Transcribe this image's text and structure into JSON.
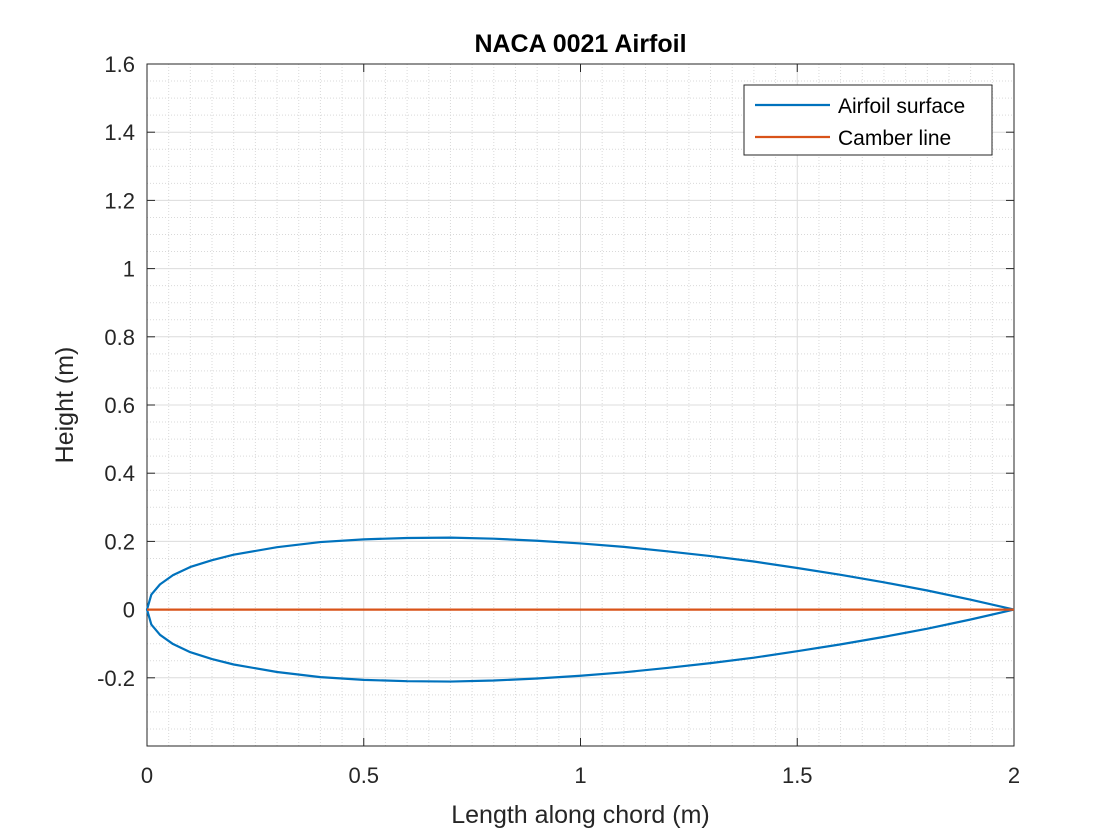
{
  "chart_data": {
    "type": "line",
    "title": "NACA 0021 Airfoil",
    "xlabel": "Length along chord (m)",
    "ylabel": "Height (m)",
    "xlim": [
      0,
      2
    ],
    "ylim": [
      -0.4,
      1.6
    ],
    "xticks": [
      0,
      0.5,
      1,
      1.5,
      2
    ],
    "xtick_labels": [
      "0",
      "0.5",
      "1",
      "1.5",
      "2"
    ],
    "yticks": [
      -0.2,
      0,
      0.2,
      0.4,
      0.6,
      0.8,
      1,
      1.2,
      1.4,
      1.6
    ],
    "ytick_labels": [
      "-0.2",
      "0",
      "0.2",
      "0.4",
      "0.6",
      "0.8",
      "1",
      "1.2",
      "1.4",
      "1.6"
    ],
    "grid": true,
    "minor_grid": true,
    "legend_position": "top-right",
    "series": [
      {
        "name": "Airfoil surface",
        "color": "#0072BD",
        "x": [
          2,
          1.9,
          1.8,
          1.7,
          1.6,
          1.5,
          1.4,
          1.3,
          1.2,
          1.1,
          1,
          0.9,
          0.8,
          0.7,
          0.6,
          0.5,
          0.4,
          0.3,
          0.2,
          0.15,
          0.1,
          0.06,
          0.03,
          0.01,
          0,
          0.01,
          0.03,
          0.06,
          0.1,
          0.15,
          0.2,
          0.3,
          0.4,
          0.5,
          0.6,
          0.7,
          0.8,
          0.9,
          1,
          1.1,
          1.2,
          1.3,
          1.4,
          1.5,
          1.6,
          1.7,
          1.8,
          1.9,
          2
        ],
        "y": [
          0,
          0.029,
          0.056,
          0.08,
          0.102,
          0.122,
          0.141,
          0.157,
          0.171,
          0.184,
          0.194,
          0.202,
          0.208,
          0.211,
          0.21,
          0.206,
          0.198,
          0.183,
          0.161,
          0.145,
          0.125,
          0.101,
          0.074,
          0.044,
          0,
          -0.044,
          -0.074,
          -0.101,
          -0.125,
          -0.145,
          -0.161,
          -0.183,
          -0.198,
          -0.206,
          -0.21,
          -0.211,
          -0.208,
          -0.202,
          -0.194,
          -0.184,
          -0.171,
          -0.157,
          -0.141,
          -0.122,
          -0.102,
          -0.08,
          -0.056,
          -0.029,
          0
        ]
      },
      {
        "name": "Camber line",
        "color": "#D95319",
        "x": [
          0,
          2
        ],
        "y": [
          0,
          0
        ]
      }
    ]
  }
}
